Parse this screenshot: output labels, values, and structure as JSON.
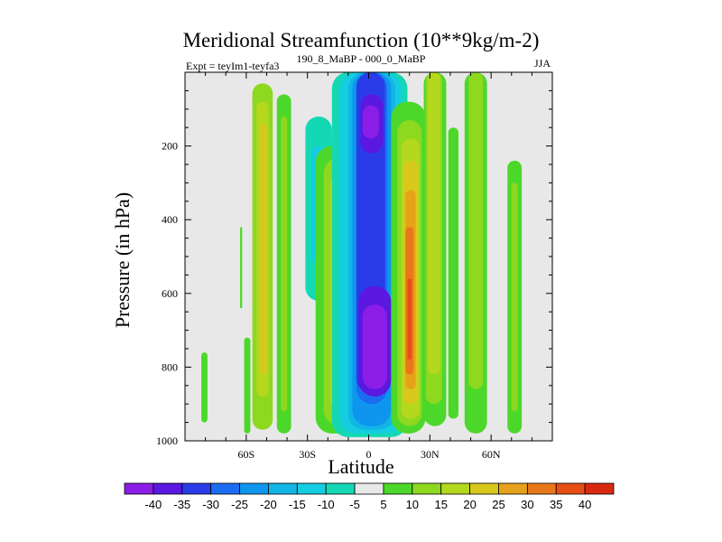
{
  "chart_data": {
    "type": "heatmap",
    "title": "Meridional Streamfunction (10**9kg/m-2)",
    "subtitle": "190_8_MaBP - 000_0_MaBP",
    "left_label": "Expt = teyIm1-teyfa3",
    "right_label": "JJA",
    "xlabel": "Latitude",
    "ylabel": "Pressure (in hPa)",
    "xlim": [
      -90,
      90
    ],
    "ylim": [
      1000,
      0
    ],
    "x_ticks": [
      -60,
      -30,
      0,
      30,
      60
    ],
    "x_tick_labels": [
      "60S",
      "30S",
      "0",
      "30N",
      "60N"
    ],
    "y_ticks": [
      200,
      400,
      600,
      800,
      1000
    ],
    "y_tick_labels": [
      "200",
      "400",
      "600",
      "800",
      "1000"
    ],
    "colorbar": {
      "labels": [
        "-40",
        "-35",
        "-30",
        "-25",
        "-20",
        "-15",
        "-10",
        "-5",
        "5",
        "10",
        "15",
        "20",
        "25",
        "30",
        "35",
        "40"
      ],
      "colors": [
        "#8a1ee6",
        "#5a18e0",
        "#2a3be8",
        "#1a6df0",
        "#0e95ee",
        "#12b5e6",
        "#14cde0",
        "#14d8b4",
        "#e8e8e8",
        "#4cd82a",
        "#8ed820",
        "#b4d81e",
        "#d8c81c",
        "#e6a21a",
        "#e8781a",
        "#e64e14",
        "#d82a10"
      ]
    },
    "regions": [
      {
        "level": 5,
        "lat": [
          -82,
          -79
        ],
        "p": [
          760,
          950
        ]
      },
      {
        "level": 5,
        "lat": [
          -63,
          -62
        ],
        "p": [
          420,
          640
        ]
      },
      {
        "level": 5,
        "lat": [
          -61,
          -58
        ],
        "p": [
          720,
          980
        ]
      },
      {
        "level": 10,
        "lat": [
          -57,
          -47
        ],
        "p": [
          30,
          970
        ]
      },
      {
        "level": 15,
        "lat": [
          -55,
          -49
        ],
        "p": [
          80,
          880
        ]
      },
      {
        "level": 20,
        "lat": [
          -53,
          -50
        ],
        "p": [
          140,
          820
        ]
      },
      {
        "level": 5,
        "lat": [
          -45,
          -38
        ],
        "p": [
          60,
          980
        ]
      },
      {
        "level": 10,
        "lat": [
          -43,
          -40
        ],
        "p": [
          120,
          920
        ]
      },
      {
        "level": -5,
        "lat": [
          -31,
          -18
        ],
        "p": [
          120,
          620
        ]
      },
      {
        "level": -10,
        "lat": [
          -28,
          -21
        ],
        "p": [
          200,
          520
        ]
      },
      {
        "level": -15,
        "lat": [
          -26,
          -23
        ],
        "p": [
          240,
          420
        ]
      },
      {
        "level": 5,
        "lat": [
          -26,
          0
        ],
        "p": [
          200,
          980
        ]
      },
      {
        "level": 10,
        "lat": [
          -22,
          -3
        ],
        "p": [
          230,
          960
        ]
      },
      {
        "level": 15,
        "lat": [
          -19,
          -6
        ],
        "p": [
          270,
          920
        ]
      },
      {
        "level": 20,
        "lat": [
          -17,
          -8
        ],
        "p": [
          320,
          860
        ]
      },
      {
        "level": 25,
        "lat": [
          -15,
          -10
        ],
        "p": [
          380,
          780
        ]
      },
      {
        "level": 30,
        "lat": [
          -14,
          -11
        ],
        "p": [
          460,
          700
        ]
      },
      {
        "level": -5,
        "lat": [
          -18,
          19
        ],
        "p": [
          0,
          990
        ]
      },
      {
        "level": -10,
        "lat": [
          -14,
          16
        ],
        "p": [
          0,
          980
        ]
      },
      {
        "level": -15,
        "lat": [
          -10,
          13
        ],
        "p": [
          0,
          970
        ]
      },
      {
        "level": -20,
        "lat": [
          -8,
          11
        ],
        "p": [
          0,
          960
        ]
      },
      {
        "level": -25,
        "lat": [
          -6,
          9
        ],
        "p": [
          0,
          900
        ]
      },
      {
        "level": -30,
        "lat": [
          -6,
          8
        ],
        "p": [
          0,
          870
        ]
      },
      {
        "level": -35,
        "lat": [
          -4,
          7
        ],
        "p": [
          60,
          220
        ]
      },
      {
        "level": -40,
        "lat": [
          -3,
          5
        ],
        "p": [
          90,
          180
        ]
      },
      {
        "level": -35,
        "lat": [
          -5,
          11
        ],
        "p": [
          580,
          880
        ]
      },
      {
        "level": -40,
        "lat": [
          -3,
          9
        ],
        "p": [
          630,
          860
        ]
      },
      {
        "level": 5,
        "lat": [
          11,
          28
        ],
        "p": [
          80,
          980
        ]
      },
      {
        "level": 10,
        "lat": [
          14,
          26
        ],
        "p": [
          130,
          960
        ]
      },
      {
        "level": 15,
        "lat": [
          16,
          25
        ],
        "p": [
          180,
          940
        ]
      },
      {
        "level": 20,
        "lat": [
          17,
          24
        ],
        "p": [
          240,
          900
        ]
      },
      {
        "level": 25,
        "lat": [
          18,
          23
        ],
        "p": [
          320,
          860
        ]
      },
      {
        "level": 30,
        "lat": [
          18,
          22
        ],
        "p": [
          420,
          820
        ]
      },
      {
        "level": 35,
        "lat": [
          19,
          21
        ],
        "p": [
          560,
          780
        ]
      },
      {
        "level": 5,
        "lat": [
          27,
          38
        ],
        "p": [
          0,
          960
        ]
      },
      {
        "level": 10,
        "lat": [
          28,
          36
        ],
        "p": [
          0,
          900
        ]
      },
      {
        "level": 15,
        "lat": [
          29,
          35
        ],
        "p": [
          0,
          820
        ]
      },
      {
        "level": 5,
        "lat": [
          39,
          44
        ],
        "p": [
          150,
          940
        ]
      },
      {
        "level": 5,
        "lat": [
          47,
          58
        ],
        "p": [
          0,
          980
        ]
      },
      {
        "level": 10,
        "lat": [
          49,
          56
        ],
        "p": [
          0,
          860
        ]
      },
      {
        "level": 5,
        "lat": [
          68,
          75
        ],
        "p": [
          240,
          980
        ]
      },
      {
        "level": 10,
        "lat": [
          70,
          73
        ],
        "p": [
          300,
          920
        ]
      }
    ]
  }
}
